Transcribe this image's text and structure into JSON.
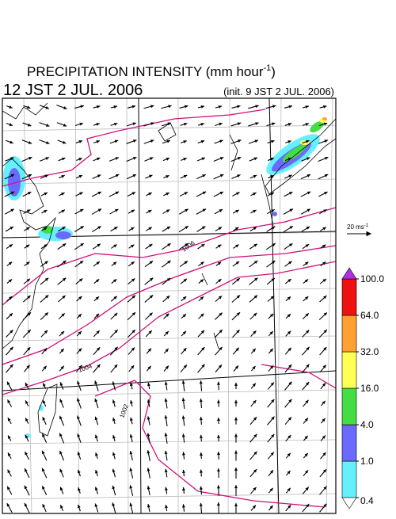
{
  "header": {
    "title": "PRECIPITATION INTENSITY (mm hour",
    "title_superscript": "-1",
    "title_close": ")",
    "valid_time": "12 JST 2 JUL. 2006",
    "init_time": "(init. 9 JST 2 JUL. 2006)"
  },
  "vector_legend": {
    "label": "20 ms",
    "label_superscript": "-1"
  },
  "isobar_labels": [
    "1006",
    "1004",
    "1002"
  ],
  "colorbar": {
    "ticks": [
      {
        "value": 0.4,
        "label": "0.4"
      },
      {
        "value": 1,
        "label": "1.0"
      },
      {
        "value": 4,
        "label": "4.0"
      },
      {
        "value": 16,
        "label": "16.0"
      },
      {
        "value": 32,
        "label": "32.0"
      },
      {
        "value": 64,
        "label": "64.0"
      },
      {
        "value": 100,
        "label": "100.0"
      }
    ],
    "colors": [
      "#66f0ff",
      "#6a6aff",
      "#44dd44",
      "#ffff55",
      "#ffa033",
      "#ee1111"
    ],
    "over_color": "#b030e0",
    "under_color": "#ffffff"
  }
}
